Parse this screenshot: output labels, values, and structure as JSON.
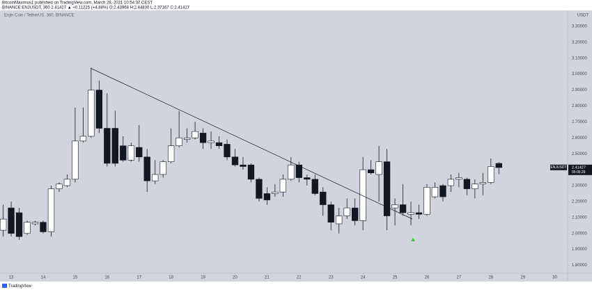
{
  "header": {
    "publisher": "BitcoinMaximus1 published on TradingView.com, March 28, 2021 10:54:37 CEST",
    "quote": "BINANCE:ENJUSDT, 360 2.41427 ▲ +0.11225 (+4.88%) O:2.43968 H:2.44830 L:2.37167 C:2.41427"
  },
  "footer": {
    "logo": "TradingView"
  },
  "chart_data": {
    "type": "candlestick",
    "title": "Enjin Coin / TetherUS, 360, BINANCE",
    "y_unit": "USDT",
    "up_color": "#ffffff",
    "down_color": "#131722",
    "edge_color": "#131722",
    "x": [
      12.75,
      13,
      13.25,
      13.5,
      13.75,
      14,
      14.25,
      14.5,
      14.75,
      15,
      15.25,
      15.5,
      15.75,
      16,
      16.25,
      16.5,
      16.75,
      17,
      17.25,
      17.5,
      17.75,
      18,
      18.25,
      18.5,
      18.75,
      19,
      19.25,
      19.5,
      19.75,
      20,
      20.25,
      20.5,
      20.75,
      21,
      21.25,
      21.5,
      21.75,
      22,
      22.25,
      22.5,
      22.75,
      23,
      23.25,
      23.5,
      23.75,
      24,
      24.25,
      24.5,
      24.75,
      25,
      25.25,
      25.5,
      25.75,
      26,
      26.25,
      26.5,
      26.75,
      27,
      27.25,
      27.5,
      27.75,
      28,
      28.25
    ],
    "open": [
      2.02,
      2.16,
      2.13,
      2.0,
      2.06,
      2.07,
      2.01,
      2.28,
      2.3,
      2.34,
      2.58,
      2.61,
      2.9,
      2.66,
      2.66,
      2.55,
      2.46,
      2.54,
      2.48,
      2.33,
      2.37,
      2.45,
      2.55,
      2.59,
      2.6,
      2.63,
      2.57,
      2.57,
      2.56,
      2.48,
      2.43,
      2.43,
      2.34,
      2.25,
      2.25,
      2.26,
      2.34,
      2.43,
      2.35,
      2.34,
      2.26,
      2.18,
      2.06,
      2.11,
      2.16,
      2.08,
      2.4,
      2.37,
      2.45,
      2.16,
      2.18,
      2.12,
      2.13,
      2.12,
      2.23,
      2.3,
      2.3,
      2.34,
      2.34,
      2.28,
      2.31,
      2.32,
      2.43968
    ],
    "high": [
      2.18,
      2.2,
      2.16,
      2.08,
      2.08,
      2.08,
      2.3,
      2.32,
      2.37,
      2.79,
      2.79,
      3.04,
      2.96,
      2.88,
      2.77,
      2.61,
      2.57,
      2.68,
      2.53,
      2.46,
      2.46,
      2.66,
      2.77,
      2.66,
      2.7,
      2.66,
      2.64,
      2.61,
      2.59,
      2.53,
      2.48,
      2.44,
      2.35,
      2.29,
      2.31,
      2.37,
      2.48,
      2.45,
      2.37,
      2.37,
      2.29,
      2.2,
      2.16,
      2.22,
      2.22,
      2.48,
      2.46,
      2.55,
      2.53,
      2.22,
      2.31,
      2.2,
      2.18,
      2.31,
      2.32,
      2.31,
      2.37,
      2.38,
      2.35,
      2.34,
      2.38,
      2.47,
      2.4483
    ],
    "low": [
      1.98,
      1.98,
      1.96,
      1.99,
      2.05,
      2.0,
      1.98,
      2.26,
      2.29,
      2.32,
      2.57,
      2.6,
      2.63,
      2.42,
      2.42,
      2.45,
      2.45,
      2.45,
      2.26,
      2.31,
      2.35,
      2.44,
      2.54,
      2.57,
      2.59,
      2.53,
      2.53,
      2.53,
      2.46,
      2.42,
      2.4,
      2.32,
      2.2,
      2.18,
      2.23,
      2.23,
      2.33,
      2.32,
      2.3,
      2.24,
      2.11,
      2.02,
      2.0,
      2.09,
      2.05,
      2.02,
      2.37,
      2.2,
      2.02,
      2.05,
      2.11,
      2.05,
      2.09,
      2.11,
      2.22,
      2.2,
      2.26,
      2.29,
      2.24,
      2.22,
      2.24,
      2.31,
      2.37167
    ],
    "close": [
      2.09,
      2.0,
      1.98,
      2.07,
      2.07,
      2.01,
      2.28,
      2.31,
      2.34,
      2.58,
      2.61,
      2.9,
      2.66,
      2.44,
      2.44,
      2.46,
      2.55,
      2.48,
      2.33,
      2.37,
      2.45,
      2.55,
      2.6,
      2.6,
      2.64,
      2.57,
      2.58,
      2.55,
      2.48,
      2.43,
      2.42,
      2.34,
      2.22,
      2.21,
      2.26,
      2.34,
      2.43,
      2.35,
      2.34,
      2.25,
      2.18,
      2.07,
      2.11,
      2.16,
      2.08,
      2.4,
      2.38,
      2.45,
      2.11,
      2.18,
      2.13,
      2.13,
      2.12,
      2.29,
      2.29,
      2.23,
      2.34,
      2.35,
      2.28,
      2.31,
      2.32,
      2.42,
      2.41427
    ],
    "xlim": [
      12.65,
      30.4
    ],
    "xticks": [
      13,
      14,
      15,
      16,
      17,
      18,
      19,
      20,
      21,
      22,
      23,
      24,
      25,
      26,
      27,
      28,
      29,
      30
    ],
    "ylim": [
      1.75,
      3.4
    ],
    "yticks": [
      {
        "value": 1.8,
        "label": "1.80000"
      },
      {
        "value": 1.9,
        "label": "1.90000"
      },
      {
        "value": 2.0,
        "label": "2.00000"
      },
      {
        "value": 2.1,
        "label": "2.10000"
      },
      {
        "value": 2.2,
        "label": "2.20000"
      },
      {
        "value": 2.3,
        "label": "2.30000"
      },
      {
        "value": 2.4,
        "label": "2.40000"
      },
      {
        "value": 2.5,
        "label": "2.50000"
      },
      {
        "value": 2.6,
        "label": "2.60000"
      },
      {
        "value": 2.7,
        "label": "2.70000"
      },
      {
        "value": 2.8,
        "label": "2.80000"
      },
      {
        "value": 2.9,
        "label": "2.90000"
      },
      {
        "value": 3.0,
        "label": "3.00000"
      },
      {
        "value": 3.1,
        "label": "3.10000"
      },
      {
        "value": 3.2,
        "label": "3.20000"
      },
      {
        "value": 3.3,
        "label": "3.30000"
      }
    ],
    "price_tag": {
      "symbol": "ENJUSDT",
      "value": 2.41427,
      "countdown": "05:05:29"
    }
  }
}
